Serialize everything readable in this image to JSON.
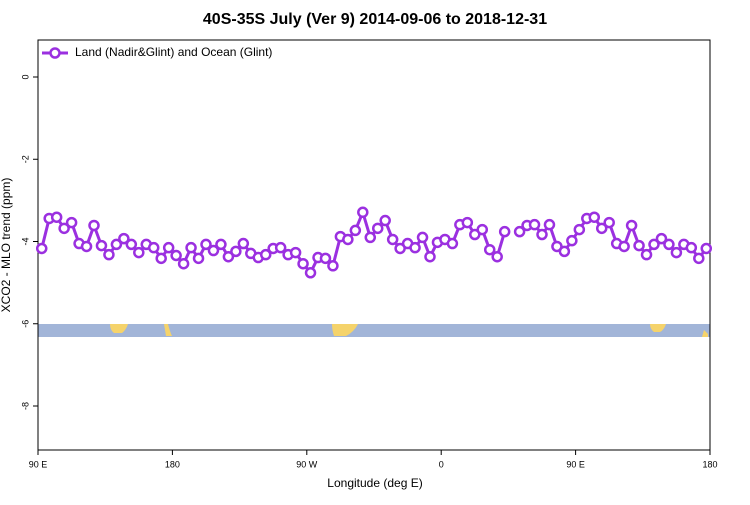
{
  "chart_data": {
    "type": "line",
    "title": "40S-35S July (Ver 9)   2014-09-06 to 2018-12-31",
    "x_label": "Longitude (deg E)",
    "y_label": "XCO2 - MLO trend (ppm)",
    "xlim": [
      90,
      540
    ],
    "ylim": [
      -9.07,
      0.9
    ],
    "xticks": [
      {
        "value": 90,
        "label": "90 E"
      },
      {
        "value": 180,
        "label": "180"
      },
      {
        "value": 270,
        "label": "90 W"
      },
      {
        "value": 360,
        "label": "0"
      },
      {
        "value": 450,
        "label": "90 E"
      },
      {
        "value": 540,
        "label": "180"
      }
    ],
    "yticks": [
      0,
      -2,
      -4,
      -6,
      -8
    ],
    "legend": "top-left",
    "x": [
      92.5,
      97.5,
      102.5,
      107.5,
      112.5,
      117.5,
      122.5,
      127.5,
      132.5,
      137.5,
      142.5,
      147.5,
      152.5,
      157.5,
      162.5,
      167.5,
      172.5,
      177.5,
      182.5,
      187.5,
      192.5,
      197.5,
      202.5,
      207.5,
      212.5,
      217.5,
      222.5,
      227.5,
      232.5,
      237.5,
      242.5,
      247.5,
      252.5,
      257.5,
      262.5,
      267.5,
      272.5,
      277.5,
      282.5,
      287.5,
      292.5,
      297.5,
      302.5,
      307.5,
      312.5,
      317.5,
      322.5,
      327.5,
      332.5,
      337.5,
      342.5,
      347.5,
      352.5,
      357.5,
      362.5,
      367.5,
      372.5,
      377.5,
      382.5,
      387.5,
      392.5,
      397.5,
      402.5,
      407.5,
      412.5,
      417.5,
      422.5,
      427.5,
      432.5,
      437.5,
      442.5,
      447.5,
      452.5,
      457.5,
      462.5,
      467.5,
      472.5,
      477.5,
      482.5,
      487.5,
      492.5,
      497.5,
      502.5,
      507.5,
      512.5,
      517.5,
      522.5,
      527.5,
      532.5,
      537.5
    ],
    "series": [
      {
        "name": "Land (Nadir&Glint) and Ocean (Glint)",
        "color": "#9b30e0",
        "values": [
          -4.17,
          -3.44,
          -3.41,
          -3.68,
          -3.54,
          -4.05,
          -4.12,
          -3.61,
          -4.1,
          -4.32,
          -4.07,
          -3.93,
          -4.07,
          -4.27,
          -4.07,
          -4.15,
          -4.41,
          -4.15,
          -4.34,
          -4.54,
          -4.15,
          -4.41,
          -4.07,
          -4.22,
          -4.07,
          -4.37,
          -4.24,
          -4.05,
          -4.29,
          -4.39,
          -4.32,
          -4.17,
          -4.15,
          -4.32,
          -4.27,
          -4.54,
          -4.76,
          -4.39,
          -4.41,
          -4.59,
          -3.88,
          -3.95,
          -3.73,
          -3.29,
          -3.9,
          -3.68,
          -3.49,
          -3.95,
          -4.17,
          -4.05,
          -4.15,
          -3.9,
          -4.37,
          -4.02,
          -3.95,
          -4.05,
          -3.59,
          -3.54,
          -3.83,
          -3.71,
          -4.2,
          -4.37,
          -3.76,
          null,
          -3.76,
          -3.61,
          -3.59,
          -3.83,
          -3.59,
          -4.12,
          -4.24,
          -3.98,
          -3.71,
          -3.44,
          -3.41,
          -3.68,
          -3.54,
          -4.05,
          -4.12,
          -3.61,
          -4.1,
          -4.32,
          -4.07,
          -3.93,
          -4.07,
          -4.27,
          -4.07,
          -4.15,
          -4.41,
          -4.17
        ]
      }
    ]
  }
}
